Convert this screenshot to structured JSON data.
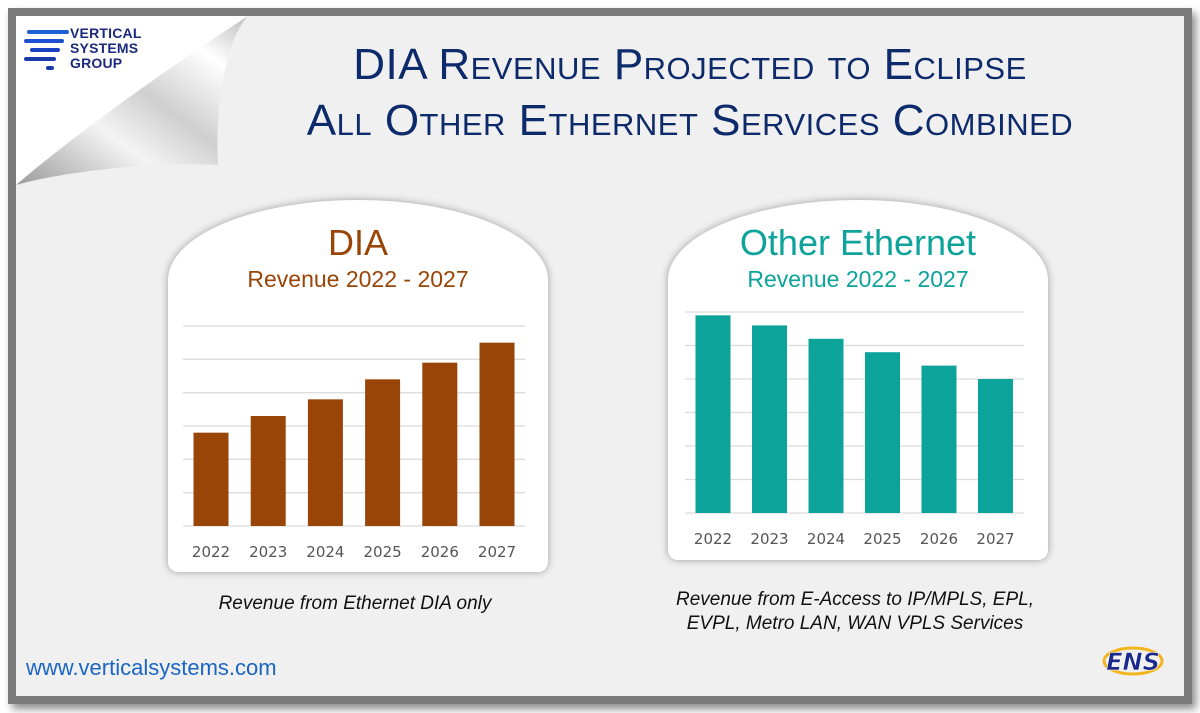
{
  "logo": {
    "lines": [
      "VERTICAL",
      "SYSTEMS",
      "GROUP"
    ]
  },
  "title": {
    "line1": "DIA Revenue Projected to Eclipse",
    "line2": "All Other Ethernet Services Combined"
  },
  "footer": {
    "url": "www.verticalsystems.com",
    "ens_logo": "ENS"
  },
  "colors": {
    "dia": "#9a4508",
    "other": "#0ca39a",
    "title": "#0d2a6b",
    "grid": "#dcdcdc"
  },
  "chart_data": [
    {
      "type": "bar",
      "title": "DIA",
      "subtitle": "Revenue 2022 - 2027",
      "categories": [
        "2022",
        "2023",
        "2024",
        "2025",
        "2026",
        "2027"
      ],
      "values": [
        2.8,
        3.3,
        3.8,
        4.4,
        4.9,
        5.5
      ],
      "ylim": [
        0,
        6
      ],
      "y_tick_labels": "none",
      "grid": true,
      "color": "#9a4508",
      "caption": "Revenue from Ethernet DIA only"
    },
    {
      "type": "bar",
      "title": "Other Ethernet",
      "subtitle": "Revenue 2022 - 2027",
      "categories": [
        "2022",
        "2023",
        "2024",
        "2025",
        "2026",
        "2027"
      ],
      "values": [
        5.9,
        5.6,
        5.2,
        4.8,
        4.4,
        4.0
      ],
      "ylim": [
        0,
        6
      ],
      "y_tick_labels": "none",
      "grid": true,
      "color": "#0ca39a",
      "caption_lines": [
        "Revenue from E-Access to IP/MPLS, EPL,",
        "EVPL, Metro LAN, WAN VPLS Services"
      ]
    }
  ]
}
